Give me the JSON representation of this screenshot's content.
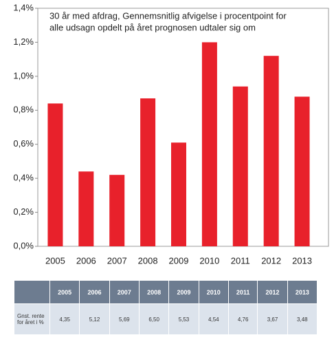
{
  "chart_data": {
    "type": "bar",
    "title": [
      "30 år med afdrag, Gennemsnitlig afvigelse i procentpoint for",
      "alle udsagn opdelt på året prognosen udtaler sig om"
    ],
    "categories": [
      "2005",
      "2006",
      "2007",
      "2008",
      "2009",
      "2010",
      "2011",
      "2012",
      "2013"
    ],
    "values": [
      0.84,
      0.44,
      0.42,
      0.87,
      0.61,
      1.2,
      0.94,
      1.12,
      0.88
    ],
    "color": "#e8212b",
    "ylim": [
      0,
      1.4
    ],
    "yticks": [
      {
        "value": 0,
        "label": "0,0%"
      },
      {
        "value": 0.2,
        "label": "0,2%"
      },
      {
        "value": 0.4,
        "label": "0,4%"
      },
      {
        "value": 0.6,
        "label": "0,6%"
      },
      {
        "value": 0.8,
        "label": "0,8%"
      },
      {
        "value": 1.0,
        "label": "1,0%"
      },
      {
        "value": 1.2,
        "label": "1,2%"
      },
      {
        "value": 1.4,
        "label": "1,4%"
      }
    ],
    "grid": false
  },
  "table": {
    "header": [
      "2005",
      "2006",
      "2007",
      "2008",
      "2009",
      "2010",
      "2011",
      "2012",
      "2013"
    ],
    "row_label": "Gnst. rente for året i %",
    "row": [
      "4,35",
      "5,12",
      "5,69",
      "6,50",
      "5,53",
      "4,54",
      "4,76",
      "3,67",
      "3,48"
    ]
  }
}
